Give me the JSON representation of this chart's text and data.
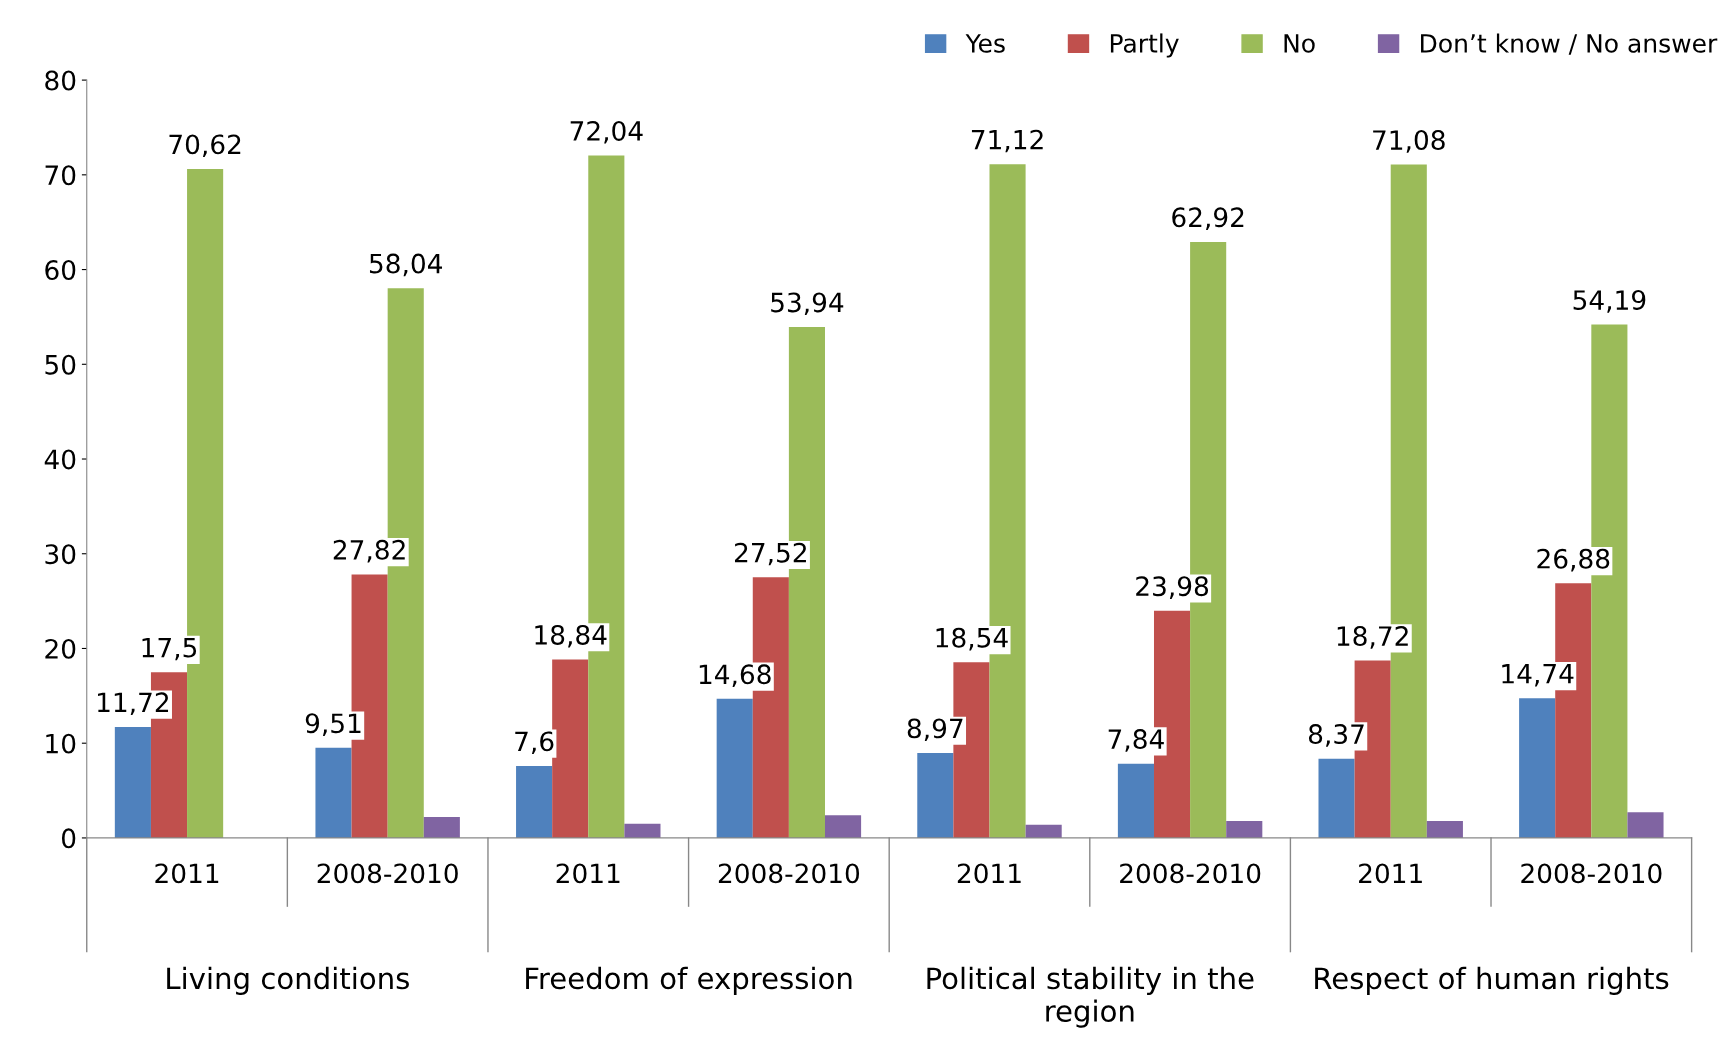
{
  "chart_data": {
    "type": "bar",
    "categories": [
      "2011",
      "2008-2010",
      "2011",
      "2008-2010",
      "2011",
      "2008-2010",
      "2011",
      "2008-2010"
    ],
    "series": [
      {
        "name": "Yes",
        "color": "#4f81bd",
        "values": [
          11.72,
          9.51,
          7.6,
          14.68,
          8.97,
          7.84,
          8.37,
          14.74
        ],
        "value_labels": [
          "11,72",
          "9,51",
          "7,6",
          "14,68",
          "8,97",
          "7,84",
          "8,37",
          "14,74"
        ]
      },
      {
        "name": "Partly",
        "color": "#c0504d",
        "values": [
          17.5,
          27.82,
          18.84,
          27.52,
          18.54,
          23.98,
          18.72,
          26.88
        ],
        "value_labels": [
          "17,5",
          "27,82",
          "18,84",
          "27,52",
          "18,54",
          "23,98",
          "18,72",
          "26,88"
        ]
      },
      {
        "name": "No",
        "color": "#9bbb59",
        "values": [
          70.62,
          58.04,
          72.04,
          53.94,
          71.12,
          62.92,
          71.08,
          54.19
        ],
        "value_labels": [
          "70,62",
          "58,04",
          "72,04",
          "53,94",
          "71,12",
          "62,92",
          "71,08",
          "54,19"
        ]
      },
      {
        "name": "Don’t know / No answer",
        "color": "#8064a2",
        "values": [
          null,
          2.2,
          1.5,
          2.4,
          1.4,
          1.8,
          1.8,
          2.7
        ]
      }
    ],
    "annotations": [
      "Living conditions",
      "Freedom of expression",
      "Political stability in the\nregion",
      "Respect of human rights"
    ],
    "ylim": [
      0,
      80
    ],
    "yticks": [
      0,
      10,
      20,
      30,
      40,
      50,
      60,
      70,
      80
    ],
    "grid": false,
    "legend": "top right"
  }
}
